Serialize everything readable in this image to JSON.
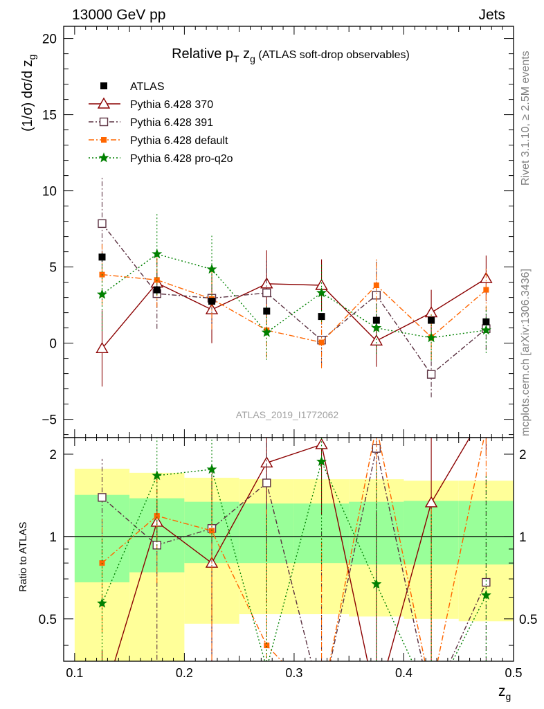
{
  "header": {
    "left": "13000 GeV pp",
    "right": "Jets"
  },
  "side": {
    "rivet": "Rivet 3.1.10, ≥ 2.5M events",
    "mcplots": "mcplots.cern.ch [arXiv:1306.3436]"
  },
  "watermark": "ATLAS_2019_I1772062",
  "chart_data": {
    "type": "line",
    "title_main": "Relative p",
    "title_sub": "T",
    "title_mid": " z",
    "title_sub2": "g",
    "title_paren": " (ATLAS soft-drop observables)",
    "ylabel": "(1/σ) dσ/d z",
    "ylabel_sub": "g",
    "xlabel": "z",
    "xlabel_sub": "g",
    "ratio_ylabel": "Ratio to ATLAS",
    "xlim": [
      0.09,
      0.5
    ],
    "ylim": [
      -6.2,
      20.8
    ],
    "ratio_ylim": [
      0.35,
      2.3
    ],
    "x_ticks": [
      "0.1",
      "0.2",
      "0.3",
      "0.4",
      "0.5"
    ],
    "y_ticks": [
      "−5",
      "0",
      "5",
      "10",
      "15",
      "20"
    ],
    "ratio_ticks": [
      "0.5",
      "1",
      "2"
    ],
    "x": [
      0.125,
      0.175,
      0.225,
      0.275,
      0.325,
      0.375,
      0.425,
      0.475
    ],
    "data": {
      "name": "ATLAS",
      "values": [
        5.65,
        3.5,
        2.75,
        2.1,
        1.75,
        1.5,
        1.5,
        1.4
      ],
      "errors": [
        0.3,
        0.25,
        0.2,
        0.2,
        0.2,
        0.2,
        0.2,
        0.2
      ]
    },
    "bands": {
      "x_edges": [
        0.1,
        0.15,
        0.2,
        0.25,
        0.3,
        0.35,
        0.4,
        0.45,
        0.5
      ],
      "green_lo": [
        0.68,
        0.74,
        0.8,
        0.8,
        0.8,
        0.79,
        0.79,
        0.79
      ],
      "green_hi": [
        1.42,
        1.38,
        1.34,
        1.32,
        1.32,
        1.34,
        1.35,
        1.35
      ],
      "yellow_lo": [
        0.3,
        0.3,
        0.48,
        0.52,
        0.52,
        0.51,
        0.5,
        0.49
      ],
      "yellow_hi": [
        1.77,
        1.71,
        1.64,
        1.62,
        1.62,
        1.62,
        1.6,
        1.6
      ]
    },
    "series": [
      {
        "name": "Pythia 6.428 370",
        "color": "#8b0000",
        "dash": "",
        "marker": "triangle",
        "values": [
          -0.35,
          3.95,
          2.2,
          3.9,
          3.8,
          0.15,
          2.0,
          4.25
        ],
        "errors": [
          2.5,
          0.8,
          2.2,
          2.2,
          1.7,
          1.7,
          1.5,
          1.5
        ],
        "ratio": [
          -0.06,
          1.13,
          0.8,
          1.86,
          2.17,
          0.1,
          1.33,
          3.04
        ]
      },
      {
        "name": "Pythia 6.428 391",
        "color": "#5a3040",
        "dash": "7 3 2 3",
        "marker": "square-open",
        "values": [
          7.85,
          3.25,
          2.95,
          3.3,
          0.2,
          3.15,
          -2.05,
          0.95
        ],
        "errors": [
          3.0,
          2.3,
          2.1,
          2.1,
          1.7,
          2.2,
          1.5,
          1.4
        ],
        "ratio": [
          1.39,
          0.93,
          1.07,
          1.57,
          0.11,
          2.1,
          -1.37,
          0.68
        ]
      },
      {
        "name": "Pythia 6.428 default",
        "color": "#ff6600",
        "dash": "8 3 2 3",
        "marker": "square-filled",
        "values": [
          4.5,
          4.15,
          2.9,
          0.85,
          0.05,
          3.8,
          0.4,
          3.5
        ],
        "errors": [
          2.0,
          1.8,
          2.0,
          1.8,
          1.7,
          1.8,
          1.5,
          1.4
        ],
        "ratio": [
          0.8,
          1.19,
          1.05,
          0.4,
          0.03,
          2.53,
          0.27,
          2.5
        ]
      },
      {
        "name": "Pythia 6.428 pro-q2o",
        "color": "#008000",
        "dash": "2 3",
        "marker": "star",
        "values": [
          3.2,
          5.85,
          4.85,
          0.7,
          3.3,
          1.0,
          0.35,
          0.85
        ],
        "errors": [
          2.4,
          2.7,
          2.2,
          1.8,
          1.9,
          1.7,
          1.5,
          1.5
        ],
        "ratio": [
          0.57,
          1.67,
          1.76,
          0.33,
          1.88,
          0.67,
          0.23,
          0.61
        ]
      }
    ]
  }
}
